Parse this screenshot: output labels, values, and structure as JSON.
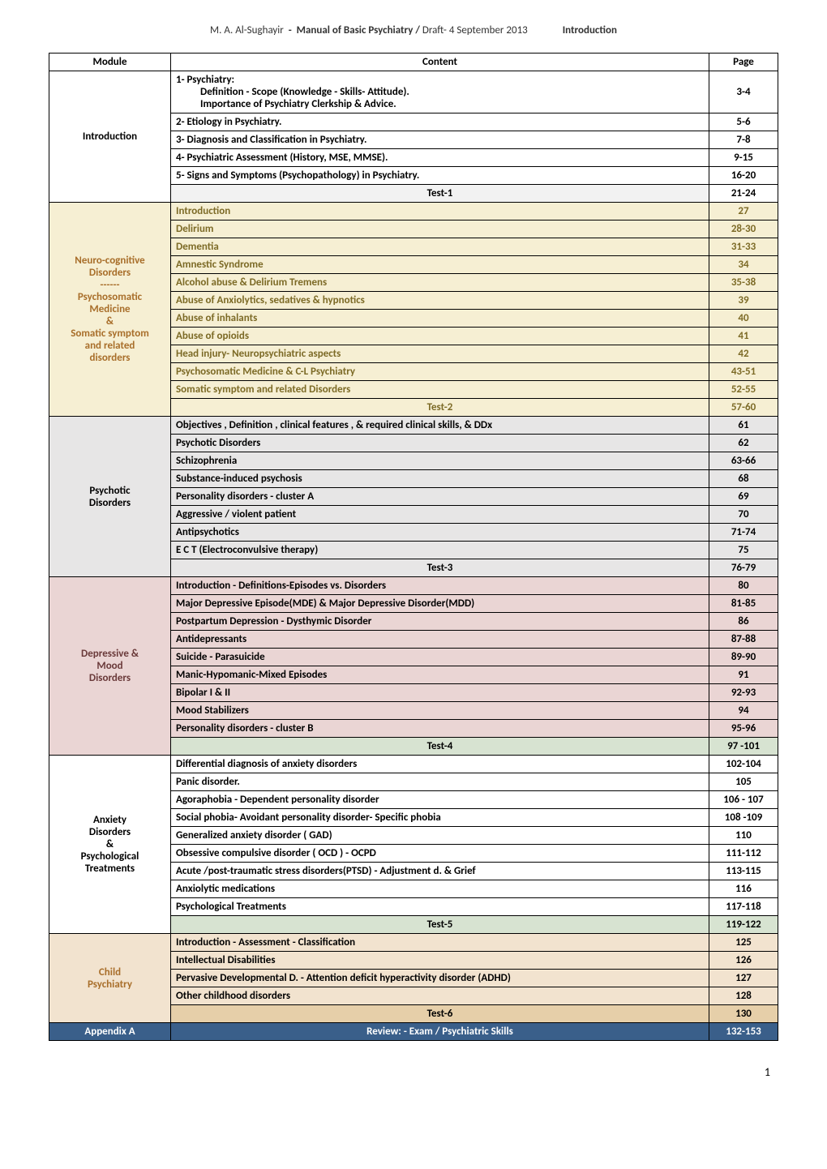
{
  "header": {
    "author": "M. A. Al-Sughayir",
    "separator": "-",
    "title": "Manual of Basic Psychiatry  /",
    "draft": "Draft- 4    September 2013",
    "section": "Introduction"
  },
  "table_headers": {
    "module": "Module",
    "content": "Content",
    "page": "Page"
  },
  "introduction": {
    "label": "Introduction",
    "rows": [
      {
        "lines": [
          "1-  Psychiatry:",
          "Definition - Scope (Knowledge - Skills- Attitude).",
          "Importance of Psychiatry Clerkship & Advice."
        ],
        "page": "3-4"
      },
      {
        "text": "2- Etiology in Psychiatry.",
        "page": "5-6"
      },
      {
        "text": "3- Diagnosis and Classification in Psychiatry.",
        "page": "7-8"
      },
      {
        "text": "4- Psychiatric Assessment  (History, MSE, MMSE).",
        "page": "9-15"
      },
      {
        "text": "5- Signs and Symptoms (Psychopathology) in Psychiatry.",
        "page": "16-20"
      },
      {
        "text": "Test-1",
        "page": "21-24",
        "is_test": true
      }
    ]
  },
  "neuro": {
    "label_lines": [
      "Neuro-cognitive",
      "Disorders",
      "------",
      "Psychosomatic",
      "Medicine",
      "&",
      "Somatic symptom",
      "and related",
      "disorders"
    ],
    "rows": [
      {
        "text": "Introduction",
        "page": "27"
      },
      {
        "text": "Delirium",
        "page": "28-30"
      },
      {
        "text": "Dementia",
        "page": "31-33"
      },
      {
        "text": "Amnestic Syndrome",
        "page": "34"
      },
      {
        "text": "Alcohol abuse  &  Delirium Tremens",
        "page": "35-38"
      },
      {
        "text": "Abuse of Anxiolytics, sedatives & hypnotics",
        "page": "39"
      },
      {
        "text": "Abuse of inhalants",
        "page": "40"
      },
      {
        "text": "Abuse of opioids",
        "page": "41"
      },
      {
        "text": "Head injury- Neuropsychiatric aspects",
        "page": "42"
      },
      {
        "text": "Psychosomatic Medicine & C-L Psychiatry",
        "page": "43-51"
      },
      {
        "text": "Somatic symptom and related Disorders",
        "page": "52-55"
      },
      {
        "text": "Test-2",
        "page": "57-60",
        "is_test": true
      }
    ]
  },
  "psychotic": {
    "label_lines": [
      "Psychotic",
      "Disorders"
    ],
    "rows": [
      {
        "text": "Objectives , Definition , clinical features , & required clinical skills, & DDx",
        "page": "61"
      },
      {
        "text": "Psychotic Disorders",
        "page": "62"
      },
      {
        "text": "Schizophrenia",
        "page": "63-66"
      },
      {
        "text": "Substance-induced psychosis",
        "page": "68"
      },
      {
        "text": "Personality disorders - cluster A",
        "page": "69"
      },
      {
        "text": "Aggressive / violent patient",
        "page": "70"
      },
      {
        "text": "Antipsychotics",
        "page": "71-74"
      },
      {
        "text": "E C T (Electroconvulsive therapy)",
        "page": "75"
      },
      {
        "text": "Test-3",
        "page": "76-79",
        "is_test": true
      }
    ]
  },
  "depressive": {
    "label_lines": [
      "Depressive  &",
      "Mood",
      "Disorders"
    ],
    "rows": [
      {
        "text": "Introduction - Definitions-Episodes vs. Disorders",
        "page": "80"
      },
      {
        "text": "Major Depressive Episode(MDE) & Major Depressive Disorder(MDD)",
        "page": "81-85"
      },
      {
        "text": "Postpartum Depression - Dysthymic Disorder",
        "page": "86"
      },
      {
        "text": "Antidepressants",
        "page": "87-88"
      },
      {
        "text": "Suicide - Parasuicide",
        "page": "89-90"
      },
      {
        "text": "Manic-Hypomanic-Mixed  Episodes",
        "page": "91"
      },
      {
        "text": "Bipolar I & II",
        "page": "92-93"
      },
      {
        "text": "Mood Stabilizers",
        "page": "94"
      },
      {
        "text": "Personality disorders - cluster B",
        "page": "95-96"
      },
      {
        "text": "Test-4",
        "page": "97 -101",
        "is_test": true
      }
    ]
  },
  "anxiety": {
    "label_lines": [
      "Anxiety",
      "Disorders",
      "&",
      "Psychological",
      "Treatments"
    ],
    "rows": [
      {
        "text": "Differential diagnosis of anxiety disorders",
        "page": "102-104"
      },
      {
        "text": "Panic disorder.",
        "page": "105"
      },
      {
        "text": "Agoraphobia - Dependent personality disorder",
        "page": "106 - 107"
      },
      {
        "text": "Social phobia- Avoidant personality disorder- Specific phobia",
        "page": "108 -109"
      },
      {
        "text": "Generalized anxiety disorder ( GAD)",
        "page": "110"
      },
      {
        "text": "Obsessive compulsive disorder ( OCD ) - OCPD",
        "page": "111-112"
      },
      {
        "text": "Acute /post-traumatic stress disorders(PTSD) - Adjustment d. & Grief",
        "page": "113-115"
      },
      {
        "text": "Anxiolytic  medications",
        "page": "116"
      },
      {
        "text": "Psychological Treatments",
        "page": "117-118"
      },
      {
        "text": "Test-5",
        "page": "119-122",
        "is_test": true
      }
    ]
  },
  "child": {
    "label_lines": [
      "Child",
      "Psychiatry"
    ],
    "rows": [
      {
        "text": "Introduction - Assessment - Classification",
        "page": "125"
      },
      {
        "text": "Intellectual Disabilities",
        "page": "126"
      },
      {
        "text": "Pervasive Developmental D. - Attention deficit hyperactivity disorder (ADHD)",
        "page": "127"
      },
      {
        "text": "Other childhood disorders",
        "page": "128"
      },
      {
        "text": "Test-6",
        "page": "130",
        "is_test": true
      }
    ]
  },
  "appendix": {
    "label": "Appendix A",
    "text": "Review: - Exam / Psychiatric Skills",
    "page": "132-153"
  },
  "footer_page": "1"
}
